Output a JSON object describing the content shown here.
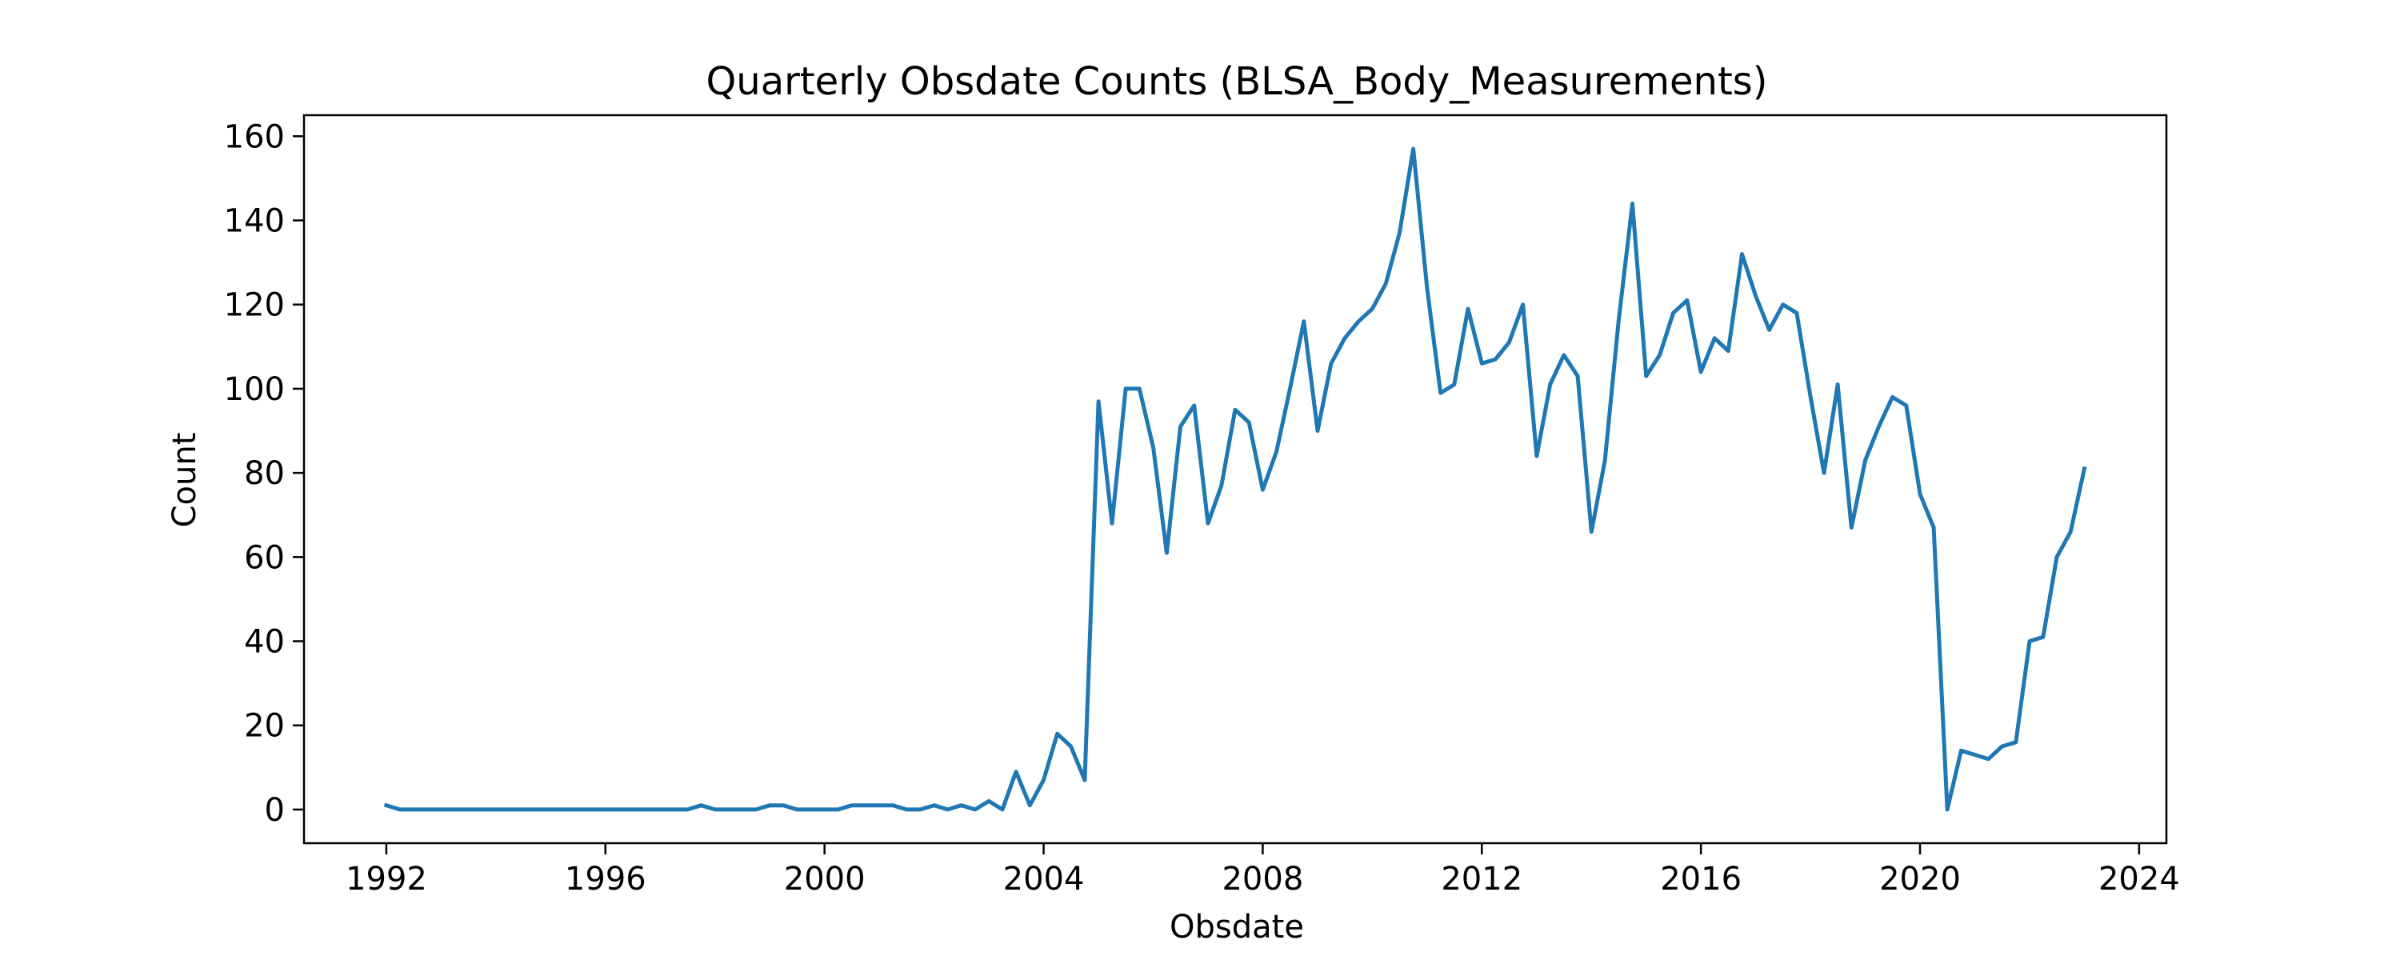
{
  "chart_data": {
    "type": "line",
    "title": "Quarterly Obsdate Counts (BLSA_Body_Measurements)",
    "xlabel": "Obsdate",
    "ylabel": "Count",
    "x_axis": "date",
    "xlim": [
      "1990-07-01",
      "2024-07-01"
    ],
    "ylim": [
      -8,
      165
    ],
    "xticks": [
      "1992",
      "1996",
      "2000",
      "2004",
      "2008",
      "2012",
      "2016",
      "2020",
      "2024"
    ],
    "yticks": [
      0,
      20,
      40,
      60,
      80,
      100,
      120,
      140,
      160
    ],
    "grid": false,
    "line_color": "#1f77b4",
    "series": [
      {
        "x": [
          "1992-01-01",
          "1992-04-01",
          "1992-07-01",
          "1992-10-01",
          "1993-01-01",
          "1993-04-01",
          "1993-07-01",
          "1993-10-01",
          "1994-01-01",
          "1994-04-01",
          "1994-07-01",
          "1994-10-01",
          "1995-01-01",
          "1995-04-01",
          "1995-07-01",
          "1995-10-01",
          "1996-01-01",
          "1996-04-01",
          "1996-07-01",
          "1996-10-01",
          "1997-01-01",
          "1997-04-01",
          "1997-07-01",
          "1997-10-01",
          "1998-01-01",
          "1998-04-01",
          "1998-07-01",
          "1998-10-01",
          "1999-01-01",
          "1999-04-01",
          "1999-07-01",
          "1999-10-01",
          "2000-01-01",
          "2000-04-01",
          "2000-07-01",
          "2000-10-01",
          "2001-01-01",
          "2001-04-01",
          "2001-07-01",
          "2001-10-01",
          "2002-01-01",
          "2002-04-01",
          "2002-07-01",
          "2002-10-01",
          "2003-01-01",
          "2003-04-01",
          "2003-07-01",
          "2003-10-01",
          "2004-01-01",
          "2004-04-01",
          "2004-07-01",
          "2004-10-01",
          "2005-01-01",
          "2005-04-01",
          "2005-07-01",
          "2005-10-01",
          "2006-01-01",
          "2006-04-01",
          "2006-07-01",
          "2006-10-01",
          "2007-01-01",
          "2007-04-01",
          "2007-07-01",
          "2007-10-01",
          "2008-01-01",
          "2008-04-01",
          "2008-07-01",
          "2008-10-01",
          "2009-01-01",
          "2009-04-01",
          "2009-07-01",
          "2009-10-01",
          "2010-01-01",
          "2010-04-01",
          "2010-07-01",
          "2010-10-01",
          "2011-01-01",
          "2011-04-01",
          "2011-07-01",
          "2011-10-01",
          "2012-01-01",
          "2012-04-01",
          "2012-07-01",
          "2012-10-01",
          "2013-01-01",
          "2013-04-01",
          "2013-07-01",
          "2013-10-01",
          "2014-01-01",
          "2014-04-01",
          "2014-07-01",
          "2014-10-01",
          "2015-01-01",
          "2015-04-01",
          "2015-07-01",
          "2015-10-01",
          "2016-01-01",
          "2016-04-01",
          "2016-07-01",
          "2016-10-01",
          "2017-01-01",
          "2017-04-01",
          "2017-07-01",
          "2017-10-01",
          "2018-01-01",
          "2018-04-01",
          "2018-07-01",
          "2018-10-01",
          "2019-01-01",
          "2019-04-01",
          "2019-07-01",
          "2019-10-01",
          "2020-01-01",
          "2020-04-01",
          "2020-07-01",
          "2020-10-01",
          "2021-01-01",
          "2021-04-01",
          "2021-07-01",
          "2021-10-01",
          "2022-01-01",
          "2022-04-01",
          "2022-07-01",
          "2022-10-01",
          "2023-01-01"
        ],
        "values": [
          1,
          0,
          0,
          0,
          0,
          0,
          0,
          0,
          0,
          0,
          0,
          0,
          0,
          0,
          0,
          0,
          0,
          0,
          0,
          0,
          0,
          0,
          0,
          1,
          0,
          0,
          0,
          0,
          1,
          1,
          0,
          0,
          0,
          0,
          1,
          1,
          1,
          1,
          0,
          0,
          1,
          0,
          1,
          0,
          2,
          0,
          9,
          1,
          7,
          18,
          15,
          7,
          97,
          68,
          100,
          100,
          86,
          61,
          91,
          96,
          68,
          77,
          95,
          92,
          76,
          85,
          100,
          116,
          90,
          106,
          112,
          116,
          119,
          125,
          137,
          157,
          124,
          99,
          101,
          119,
          106,
          107,
          111,
          120,
          84,
          101,
          108,
          103,
          66,
          83,
          116,
          144,
          103,
          108,
          118,
          121,
          104,
          112,
          109,
          132,
          122,
          114,
          120,
          118,
          98,
          80,
          101,
          67,
          83,
          91,
          98,
          96,
          75,
          67,
          0,
          14,
          13,
          12,
          15,
          16,
          40,
          41,
          60,
          66,
          81
        ]
      }
    ]
  }
}
